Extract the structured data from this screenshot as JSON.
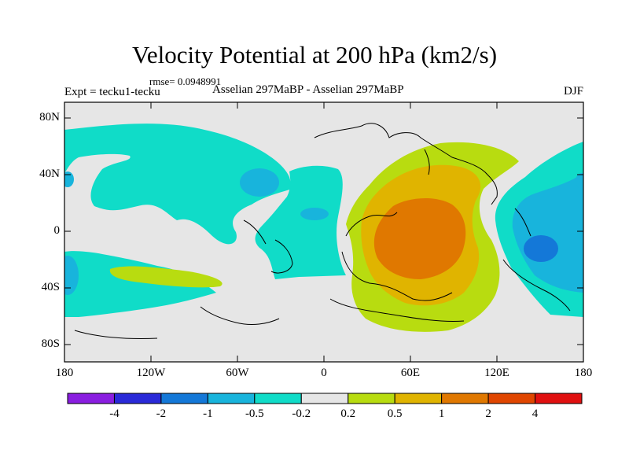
{
  "header": {
    "title": "Velocity Potential at 200 hPa (km2/s)",
    "rmse": "rmse= 0.0948991",
    "expt": "Expt = tecku1-tecku",
    "center_label": "Asselian 297MaBP - Asselian 297MaBP",
    "season": "DJF"
  },
  "map": {
    "lat_ticks": [
      "80N",
      "40N",
      "0",
      "40S",
      "80S"
    ],
    "lon_ticks": [
      "180",
      "120W",
      "60W",
      "0",
      "60E",
      "120E",
      "180"
    ],
    "background_color": "#e6e6e6"
  },
  "colorbar": {
    "labels": [
      "-4",
      "-2",
      "-1",
      "-0.5",
      "-0.2",
      "0.2",
      "0.5",
      "1",
      "2",
      "4"
    ],
    "colors": [
      "#8a1ee0",
      "#2a2ad8",
      "#1478d8",
      "#18b4dc",
      "#10dcc8",
      "#e6e6e6",
      "#b8dc10",
      "#e0b400",
      "#e07800",
      "#e04600",
      "#e01010"
    ]
  }
}
